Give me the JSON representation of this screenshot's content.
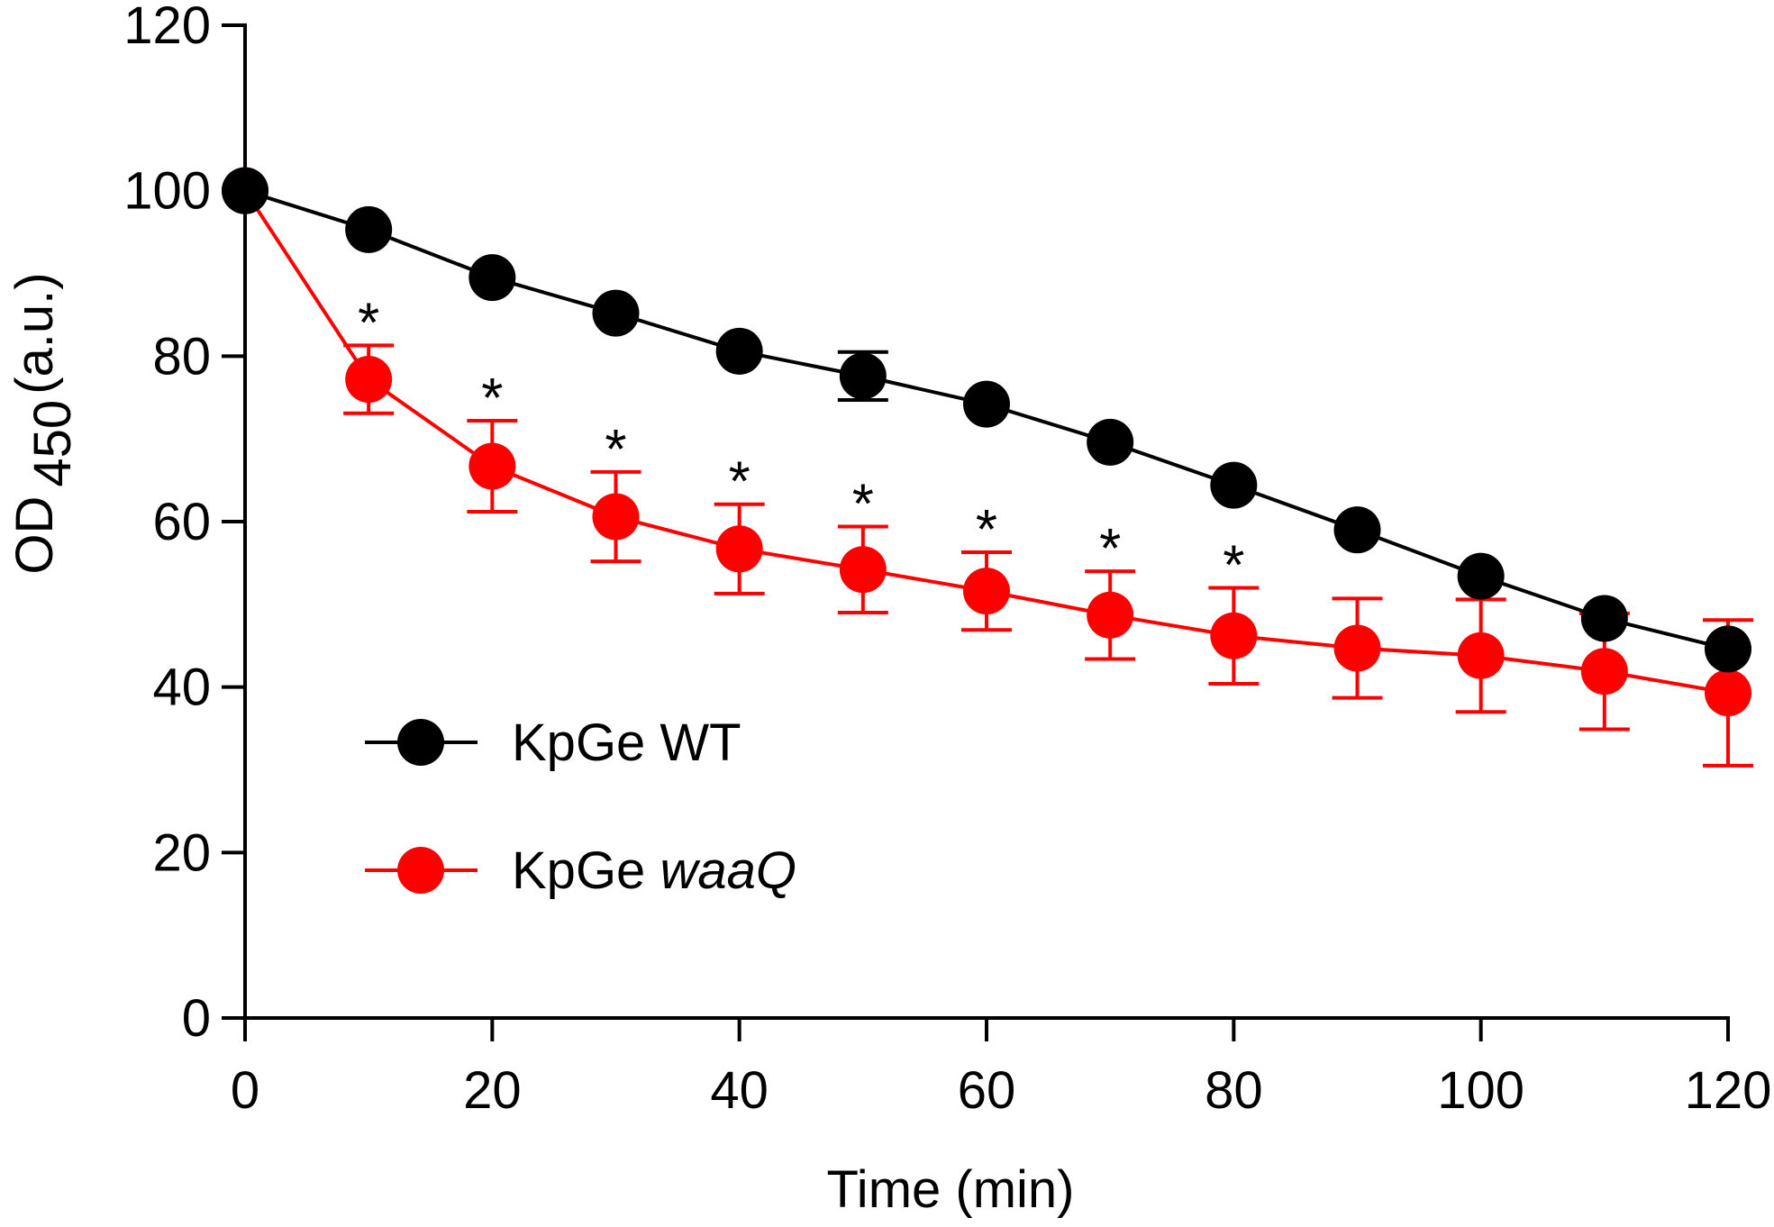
{
  "chart_data": {
    "type": "line",
    "xlabel": "Time (min)",
    "ylabel": {
      "main": "OD",
      "subscript": "450",
      "unit": "(a.u.)"
    },
    "xlim": [
      0,
      120
    ],
    "ylim": [
      0,
      120
    ],
    "xticks": [
      0,
      20,
      40,
      60,
      80,
      100,
      120
    ],
    "yticks": [
      0,
      20,
      40,
      60,
      80,
      100,
      120
    ],
    "grid": false,
    "legend_position": "bottom-left",
    "series": [
      {
        "name": "KpGe WT",
        "name_parts": [
          {
            "text": "KpGe WT",
            "italic": false
          }
        ],
        "color": "#000000",
        "x": [
          0,
          10,
          20,
          30,
          40,
          50,
          60,
          70,
          80,
          90,
          100,
          110,
          120
        ],
        "y": [
          100,
          95.3,
          89.5,
          85.2,
          80.6,
          77.6,
          74.2,
          69.6,
          64.4,
          59.0,
          53.4,
          48.3,
          44.6
        ],
        "err": [
          0,
          0,
          0,
          0,
          0,
          2.9,
          0,
          0,
          0,
          0,
          0,
          0,
          0
        ]
      },
      {
        "name": "KpGe waaQ",
        "name_parts": [
          {
            "text": "KpGe ",
            "italic": false
          },
          {
            "text": "waaQ",
            "italic": true
          }
        ],
        "color": "#ff0000",
        "x": [
          0,
          10,
          20,
          30,
          40,
          50,
          60,
          70,
          80,
          90,
          100,
          110,
          120
        ],
        "y": [
          100,
          77.2,
          66.7,
          60.6,
          56.7,
          54.2,
          51.6,
          48.7,
          46.2,
          44.7,
          43.8,
          41.9,
          39.3
        ],
        "err": [
          0,
          4.1,
          5.5,
          5.4,
          5.4,
          5.2,
          4.7,
          5.3,
          5.8,
          6.0,
          6.8,
          7.0,
          8.8
        ]
      }
    ],
    "significance": {
      "symbol": "*",
      "x": [
        10,
        20,
        30,
        40,
        50,
        60,
        70,
        80
      ]
    }
  }
}
